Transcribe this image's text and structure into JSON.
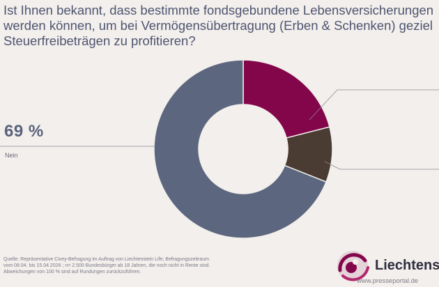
{
  "title": {
    "line1": "Ist Ihnen bekannt, dass bestimmte fondsgebundene Lebensversicherungen",
    "line2": "werden können, um bei Vermögensübertragung (Erben & Schenken) geziel",
    "line3": "Steuerfreibeträgen zu profitieren?"
  },
  "callout": {
    "value": "69 %",
    "label": "Nein"
  },
  "chart_data": {
    "type": "pie",
    "donut": true,
    "segments": [
      {
        "value": 21,
        "color": "#83064a"
      },
      {
        "value": 10,
        "color": "#4a3c33"
      },
      {
        "value": 69,
        "color": "#5c667e"
      }
    ]
  },
  "source": {
    "line1": "Quelle: Repräsentative Civey-Befragung im Auftrag von Liechtenstein Life; Befragungszeitraum",
    "line2": "vom 08.04. bis 15.04.2026 ; n= 2.500 Bundesbürger ab 18 Jahren, die noch nicht in Rente sind.",
    "line3": "Abweichungen von 100 % sind auf Rundungen zurückzuführen."
  },
  "logo": {
    "text": "Liechtenst",
    "icon": "liechtenstein-life-logo-icon"
  },
  "watermark": "www.presseportal.de",
  "colors": {
    "background": "#f2efec",
    "magenta": "#83064a",
    "brown": "#4a3c33",
    "slate": "#5c667e"
  }
}
